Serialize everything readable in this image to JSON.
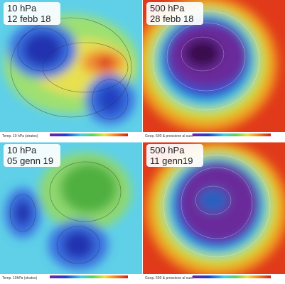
{
  "panels": [
    {
      "label_top": "10 hPa",
      "label_bottom": "12 febb 18",
      "caption": "Temp. 10 hPa (stratos)"
    },
    {
      "label_top": "500 hPa",
      "label_bottom": "28 febb 18",
      "caption": "Geop. 500 & pressione al suol"
    },
    {
      "label_top": "10 hPa",
      "label_bottom": "05 genn 19",
      "caption": "Temp. 10hPa (stratos)"
    },
    {
      "label_top": "500 hPa",
      "label_bottom": "11 genn19",
      "caption": "Geop. 500 & pressione al suol"
    }
  ]
}
